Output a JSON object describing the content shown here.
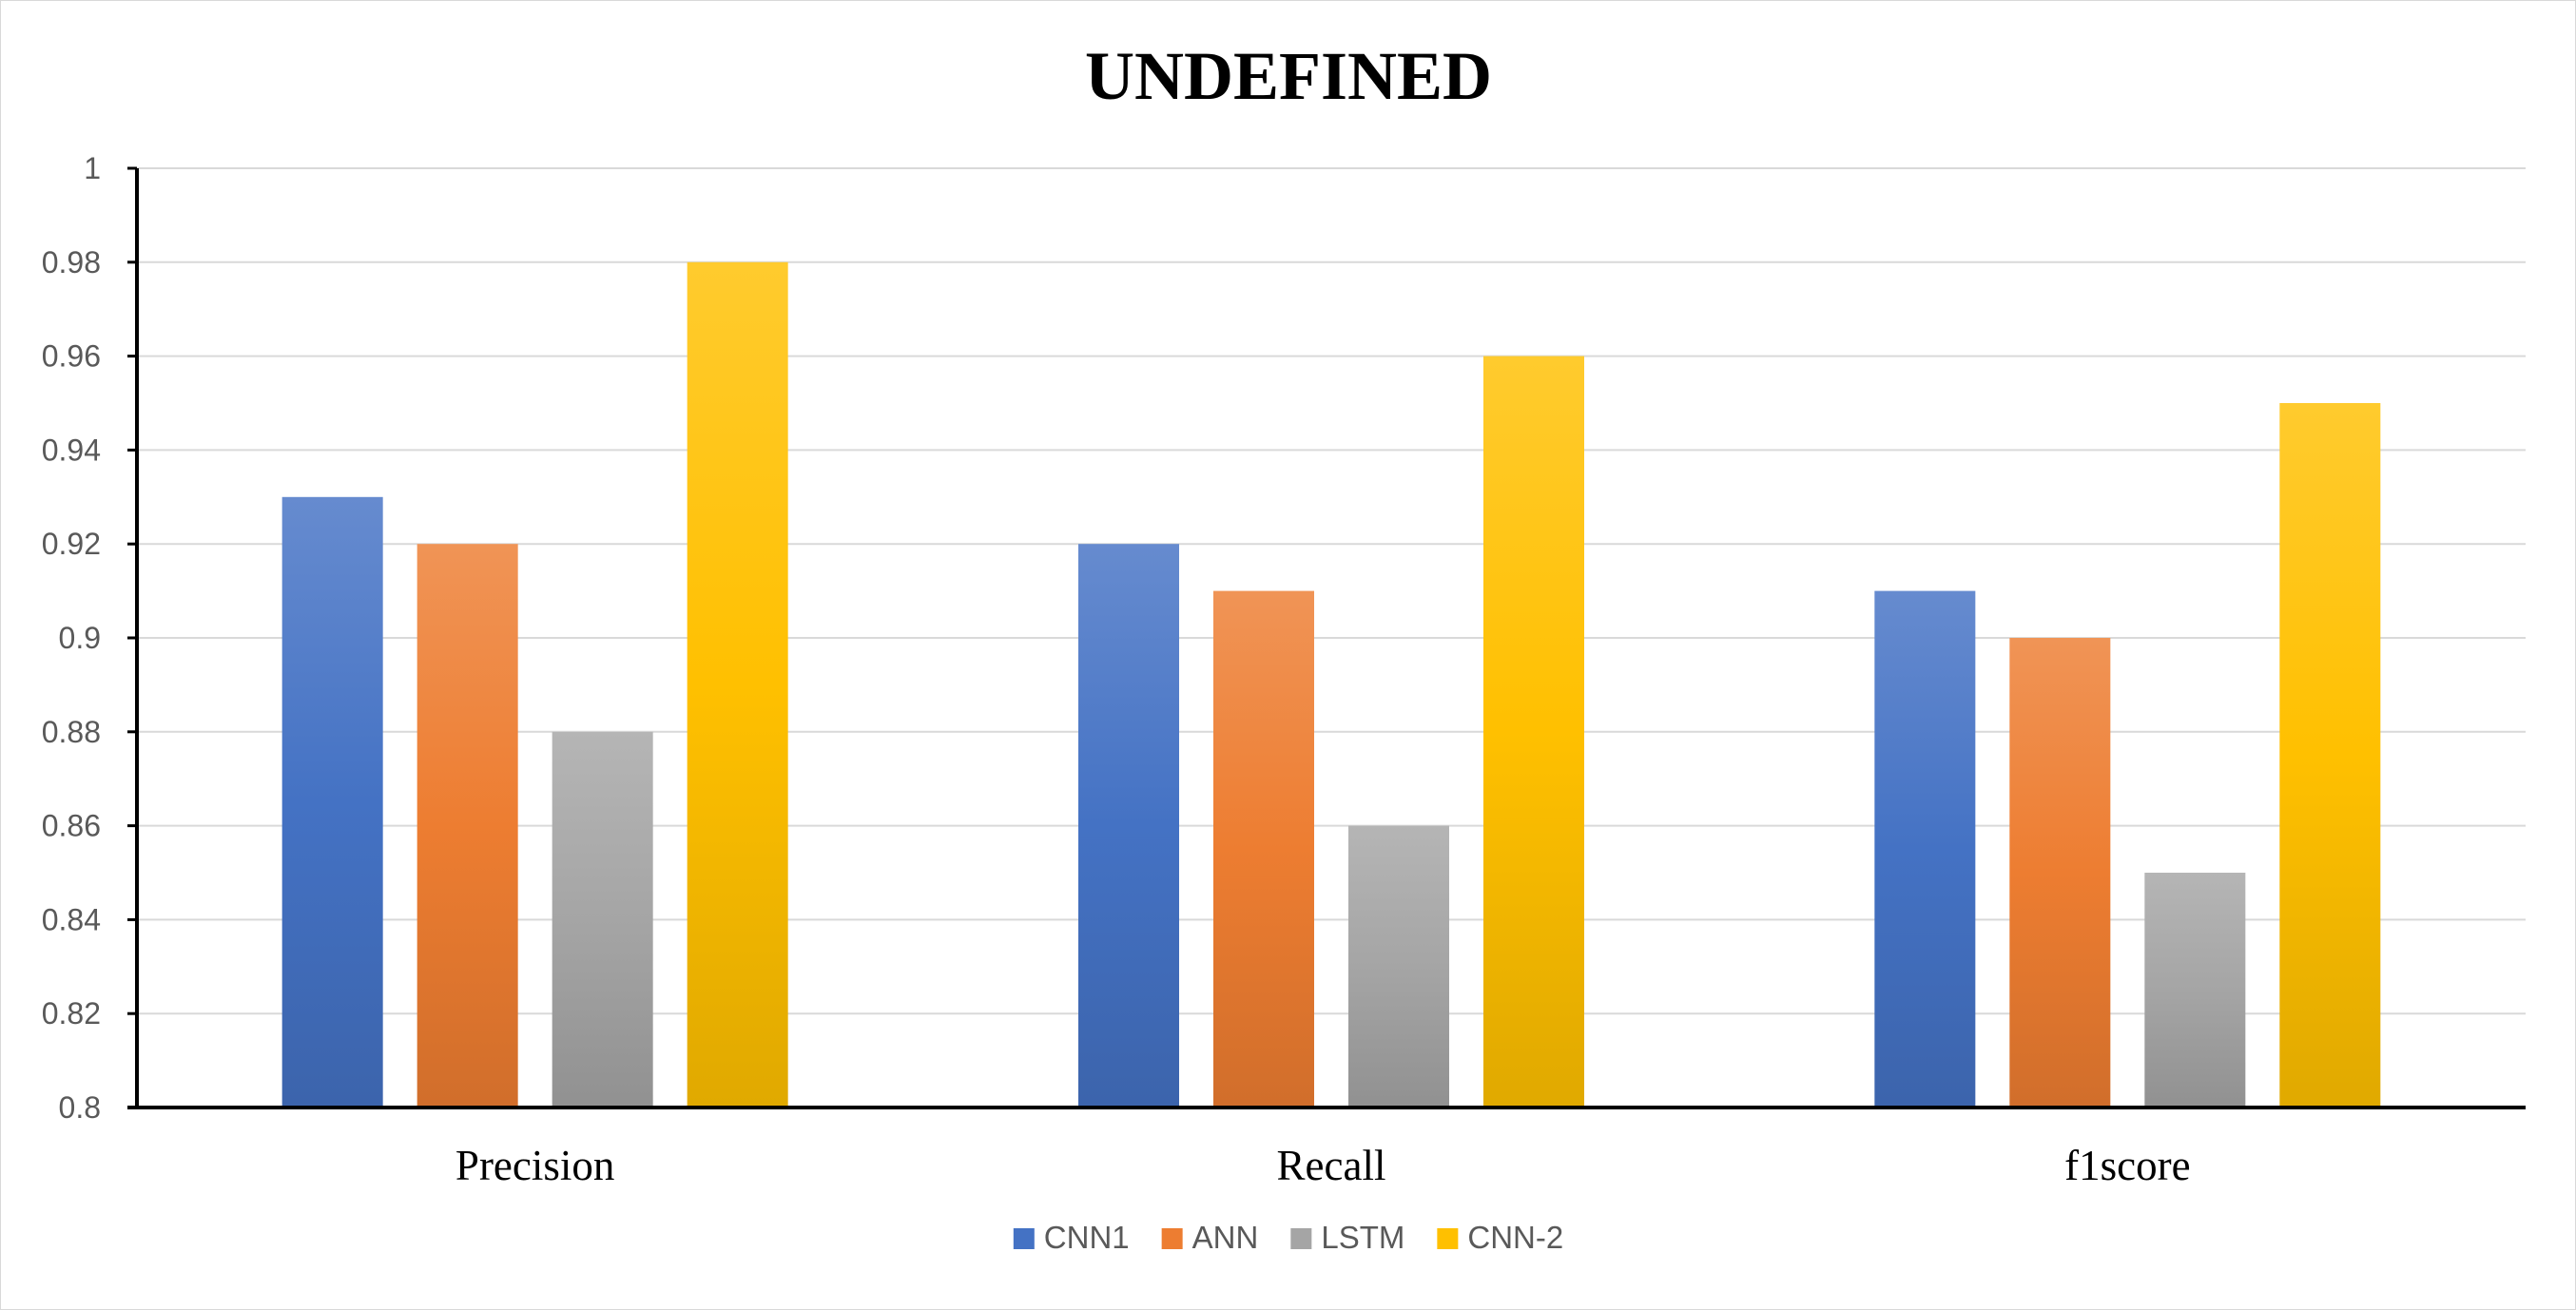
{
  "chart_data": {
    "type": "bar",
    "title": "UNDEFINED",
    "categories": [
      "Precision",
      "Recall",
      "f1score"
    ],
    "series": [
      {
        "name": "CNN1",
        "values": [
          0.93,
          0.92,
          0.91
        ],
        "color": "#4472C4"
      },
      {
        "name": "ANN",
        "values": [
          0.92,
          0.91,
          0.9
        ],
        "color": "#ED7D31"
      },
      {
        "name": "LSTM",
        "values": [
          0.88,
          0.86,
          0.85
        ],
        "color": "#A5A5A5"
      },
      {
        "name": "CNN-2",
        "values": [
          0.98,
          0.96,
          0.95
        ],
        "color": "#FFC000"
      }
    ],
    "ylim": [
      0.8,
      1.0
    ],
    "yticks": [
      "0.8",
      "0.82",
      "0.84",
      "0.86",
      "0.88",
      "0.9",
      "0.92",
      "0.94",
      "0.96",
      "0.98",
      "1"
    ],
    "xlabel": "",
    "ylabel": "",
    "grid": true,
    "legend_position": "bottom"
  }
}
